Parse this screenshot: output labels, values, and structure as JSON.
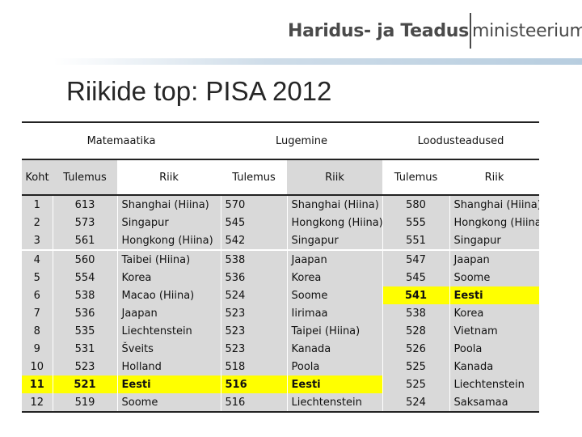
{
  "logo": {
    "part1": "Haridus- ja Teadus",
    "part2": "ministeerium"
  },
  "title": "Riikide top: PISA 2012",
  "table": {
    "groups": [
      "Matemaatika",
      "Lugemine",
      "Loodusteadused"
    ],
    "headers": {
      "koht": "Koht",
      "tulemus": "Tulemus",
      "riik": "Riik"
    },
    "rows": [
      {
        "koht": "1",
        "m_score": "613",
        "m_country": "Shanghai (Hiina)",
        "l_score": "570",
        "l_country": "Shanghai (Hiina)",
        "s_score": "580",
        "s_country": "Shanghai (Hiina)"
      },
      {
        "koht": "2",
        "m_score": "573",
        "m_country": "Singapur",
        "l_score": "545",
        "l_country": "Hongkong (Hiina)",
        "s_score": "555",
        "s_country": "Hongkong (Hiina)"
      },
      {
        "koht": "3",
        "m_score": "561",
        "m_country": "Hongkong (Hiina)",
        "l_score": "542",
        "l_country": "Singapur",
        "s_score": "551",
        "s_country": "Singapur"
      },
      {
        "koht": "4",
        "m_score": "560",
        "m_country": "Taibei (Hiina)",
        "l_score": "538",
        "l_country": "Jaapan",
        "s_score": "547",
        "s_country": "Jaapan"
      },
      {
        "koht": "5",
        "m_score": "554",
        "m_country": "Korea",
        "l_score": "536",
        "l_country": "Korea",
        "s_score": "545",
        "s_country": "Soome"
      },
      {
        "koht": "6",
        "m_score": "538",
        "m_country": "Macao (Hiina)",
        "l_score": "524",
        "l_country": "Soome",
        "s_score": "541",
        "s_country": "Eesti"
      },
      {
        "koht": "7",
        "m_score": "536",
        "m_country": "Jaapan",
        "l_score": "523",
        "l_country": "Iirimaa",
        "s_score": "538",
        "s_country": "Korea"
      },
      {
        "koht": "8",
        "m_score": "535",
        "m_country": "Liechtenstein",
        "l_score": "523",
        "l_country": "Taipei (Hiina)",
        "s_score": "528",
        "s_country": "Vietnam"
      },
      {
        "koht": "9",
        "m_score": "531",
        "m_country": "Šveits",
        "l_score": "523",
        "l_country": "Kanada",
        "s_score": "526",
        "s_country": "Poola"
      },
      {
        "koht": "10",
        "m_score": "523",
        "m_country": "Holland",
        "l_score": "518",
        "l_country": "Poola",
        "s_score": "525",
        "s_country": "Kanada"
      },
      {
        "koht": "11",
        "m_score": "521",
        "m_country": "Eesti",
        "l_score": "516",
        "l_country": "Eesti",
        "s_score": "525",
        "s_country": "Liechtenstein"
      },
      {
        "koht": "12",
        "m_score": "519",
        "m_country": "Soome",
        "l_score": "516",
        "l_country": "Liechtenstein",
        "s_score": "524",
        "s_country": "Saksamaa"
      }
    ],
    "highlight_color": "#ffff00",
    "shade_color": "#d9d9d9"
  }
}
